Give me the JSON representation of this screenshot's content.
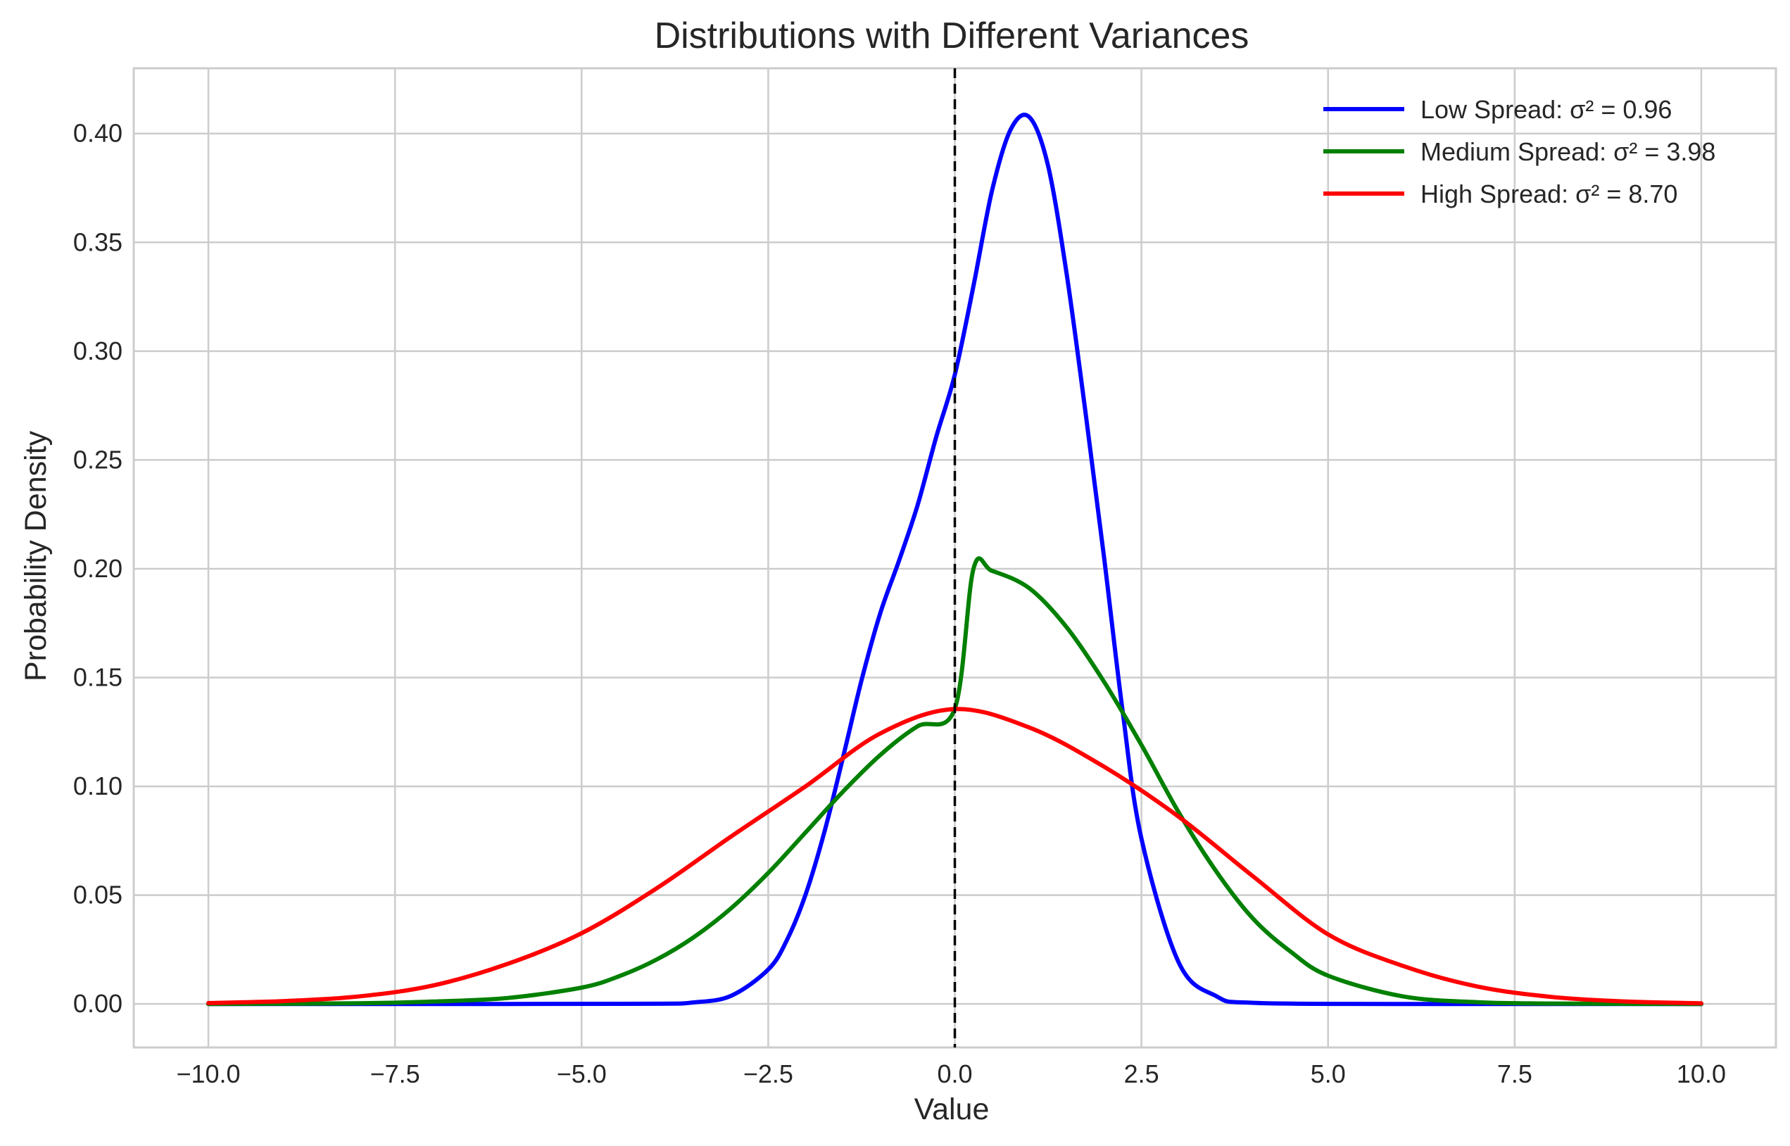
{
  "chart_data": {
    "type": "line",
    "title": "Distributions with Different Variances",
    "xlabel": "Value",
    "ylabel": "Probability Density",
    "xlim": [
      -11.0,
      11.0
    ],
    "ylim": [
      -0.02,
      0.43
    ],
    "x_ticks": [
      -10.0,
      -7.5,
      -5.0,
      -2.5,
      0.0,
      2.5,
      5.0,
      7.5,
      10.0
    ],
    "x_tick_labels": [
      "−10.0",
      "−7.5",
      "−5.0",
      "−2.5",
      "0.0",
      "2.5",
      "5.0",
      "7.5",
      "10.0"
    ],
    "y_ticks": [
      0.0,
      0.05,
      0.1,
      0.15,
      0.2,
      0.25,
      0.3,
      0.35,
      0.4
    ],
    "y_tick_labels": [
      "0.00",
      "0.05",
      "0.10",
      "0.15",
      "0.20",
      "0.25",
      "0.30",
      "0.35",
      "0.40"
    ],
    "grid": true,
    "legend_position": "top-right",
    "reference_line": {
      "x": 0.0,
      "style": "dashed",
      "color": "#000000"
    },
    "series": [
      {
        "name": "Low Spread: σ² = 0.96",
        "color": "#0000ff",
        "x": [
          -10,
          -6,
          -4,
          -3.5,
          -3,
          -2.5,
          -2.25,
          -2,
          -1.75,
          -1.5,
          -1.25,
          -1,
          -0.75,
          -0.5,
          -0.25,
          0,
          0.25,
          0.5,
          0.75,
          1,
          1.25,
          1.5,
          1.75,
          2,
          2.25,
          2.5,
          3,
          3.5,
          4,
          6,
          10
        ],
        "y": [
          0.0,
          0.0,
          0.0001,
          0.0007,
          0.0037,
          0.0158,
          0.0293,
          0.0502,
          0.0787,
          0.113,
          0.1487,
          0.1795,
          0.2035,
          0.2291,
          0.2605,
          0.2892,
          0.33,
          0.374,
          0.402,
          0.4075,
          0.385,
          0.335,
          0.272,
          0.205,
          0.134,
          0.076,
          0.019,
          0.0036,
          0.0005,
          0.0,
          0.0
        ]
      },
      {
        "name": "Medium Spread: σ² = 3.98",
        "color": "#008000",
        "x": [
          -10,
          -8,
          -7,
          -6,
          -5,
          -4.5,
          -4,
          -3.5,
          -3,
          -2.5,
          -2,
          -1.5,
          -1,
          -0.5,
          0,
          0.25,
          0.5,
          1,
          1.5,
          2,
          2.5,
          3,
          3.5,
          4,
          4.5,
          5,
          6,
          7,
          8,
          10
        ],
        "y": [
          0.0,
          0.0003,
          0.0011,
          0.0027,
          0.0075,
          0.0127,
          0.0203,
          0.0306,
          0.0439,
          0.0602,
          0.0788,
          0.0975,
          0.1144,
          0.1276,
          0.1357,
          0.2,
          0.199,
          0.191,
          0.173,
          0.148,
          0.119,
          0.088,
          0.061,
          0.039,
          0.024,
          0.013,
          0.0035,
          0.0008,
          0.0002,
          0.0
        ]
      },
      {
        "name": "High Spread: σ² = 8.70",
        "color": "#ff0000",
        "x": [
          -10,
          -9,
          -8,
          -7,
          -6,
          -5,
          -4,
          -3,
          -2,
          -1,
          0,
          1,
          2,
          3,
          4,
          5,
          6,
          7,
          8,
          9,
          10
        ],
        "y": [
          0.0004,
          0.0013,
          0.0034,
          0.0084,
          0.0183,
          0.0325,
          0.053,
          0.0769,
          0.1,
          0.1243,
          0.1355,
          0.127,
          0.109,
          0.086,
          0.0585,
          0.032,
          0.0175,
          0.008,
          0.0032,
          0.0011,
          0.0003
        ]
      }
    ]
  }
}
